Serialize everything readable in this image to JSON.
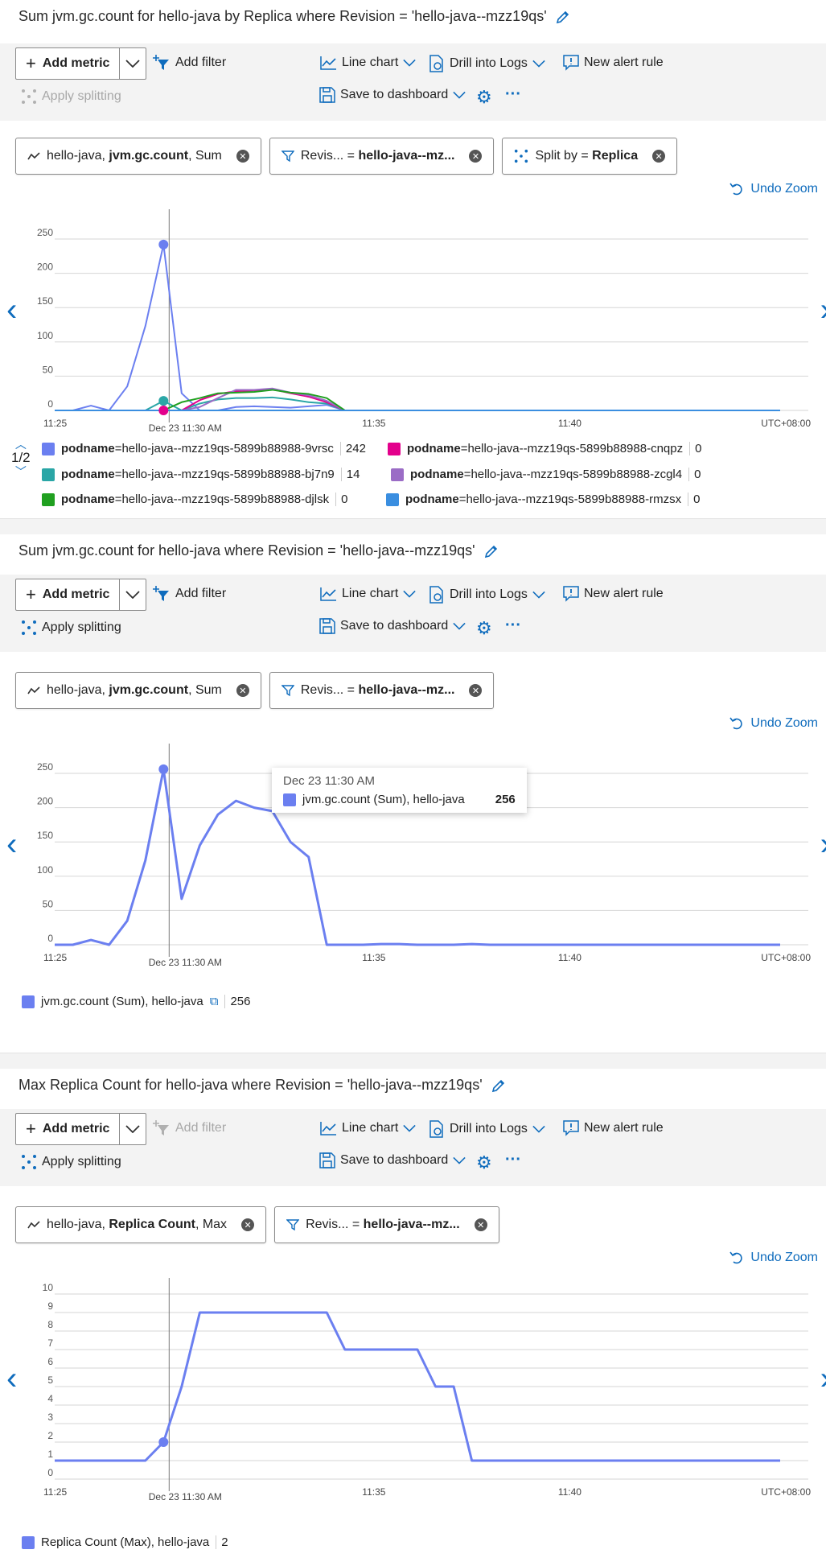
{
  "colors": {
    "blue": "#6b7ff0",
    "teal": "#2aa6a6",
    "magenta": "#e3008c",
    "purple": "#9b6cc6",
    "green": "#20a020",
    "skyblue": "#3a8ee0",
    "grid": "#d6d6d6",
    "accent": "#0f6cbd"
  },
  "panels": [
    {
      "title": "Sum jvm.gc.count for hello-java by Replica where Revision = 'hello-java--mzz19qs'",
      "toolbar": {
        "add_metric": "Add metric",
        "add_filter": "Add filter",
        "add_filter_disabled": false,
        "line_chart": "Line chart",
        "drill_logs": "Drill into Logs",
        "new_alert": "New alert rule",
        "apply_splitting": "Apply splitting",
        "apply_splitting_disabled": true,
        "save_dashboard": "Save to dashboard",
        "more": "···"
      },
      "pills": [
        {
          "prefix": "hello-java, ",
          "bold": "jvm.gc.count",
          "suffix": ", Sum",
          "icon": "metric-icon"
        },
        {
          "prefix": "Revis... = ",
          "bold": "hello-java--mz...",
          "suffix": "",
          "icon": "filter-icon"
        },
        {
          "prefix": "Split by = ",
          "bold": "Replica",
          "suffix": "",
          "icon": "split-icon"
        }
      ],
      "undo": "Undo Zoom",
      "pager": "1/2",
      "legend": [
        {
          "key": "podname",
          "value_text": "=hello-java--mzz19qs-5899b88988-9vrsc",
          "num": "242",
          "color": "#6b7ff0"
        },
        {
          "key": "podname",
          "value_text": "=hello-java--mzz19qs-5899b88988-cnqpz",
          "num": "0",
          "color": "#e3008c"
        },
        {
          "key": "podname",
          "value_text": "=hello-java--mzz19qs-5899b88988-bj7n9",
          "num": "14",
          "color": "#2aa6a6"
        },
        {
          "key": "podname",
          "value_text": "=hello-java--mzz19qs-5899b88988-zcgl4",
          "num": "0",
          "color": "#9b6cc6"
        },
        {
          "key": "podname",
          "value_text": "=hello-java--mzz19qs-5899b88988-djlsk",
          "num": "0",
          "color": "#20a020"
        },
        {
          "key": "podname",
          "value_text": "=hello-java--mzz19qs-5899b88988-rmzsx",
          "num": "0",
          "color": "#3a8ee0"
        }
      ]
    },
    {
      "title": "Sum jvm.gc.count for hello-java where Revision = 'hello-java--mzz19qs'",
      "toolbar": {
        "add_metric": "Add metric",
        "add_filter": "Add filter",
        "add_filter_disabled": false,
        "line_chart": "Line chart",
        "drill_logs": "Drill into Logs",
        "new_alert": "New alert rule",
        "apply_splitting": "Apply splitting",
        "apply_splitting_disabled": false,
        "save_dashboard": "Save to dashboard",
        "more": "···"
      },
      "pills": [
        {
          "prefix": "hello-java, ",
          "bold": "jvm.gc.count",
          "suffix": ", Sum",
          "icon": "metric-icon"
        },
        {
          "prefix": "Revis... = ",
          "bold": "hello-java--mz...",
          "suffix": "",
          "icon": "filter-icon"
        }
      ],
      "undo": "Undo Zoom",
      "tooltip": {
        "date": "Dec 23 11:30 AM",
        "label": "jvm.gc.count (Sum), hello-java",
        "value": "256"
      },
      "legend": [
        {
          "label": "jvm.gc.count (Sum), hello-java",
          "num": "256",
          "color": "#6b7ff0"
        }
      ]
    },
    {
      "title": "Max Replica Count for hello-java where Revision = 'hello-java--mzz19qs'",
      "toolbar": {
        "add_metric": "Add metric",
        "add_filter": "Add filter",
        "add_filter_disabled": true,
        "line_chart": "Line chart",
        "drill_logs": "Drill into Logs",
        "new_alert": "New alert rule",
        "apply_splitting": "Apply splitting",
        "apply_splitting_disabled": false,
        "save_dashboard": "Save to dashboard",
        "more": "···"
      },
      "pills": [
        {
          "prefix": "hello-java, ",
          "bold": "Replica Count",
          "suffix": ", Max",
          "icon": "metric-icon"
        },
        {
          "prefix": "Revis... = ",
          "bold": "hello-java--mz...",
          "suffix": "",
          "icon": "filter-icon"
        }
      ],
      "undo": "Undo Zoom",
      "legend": [
        {
          "label": "Replica Count (Max), hello-java",
          "num": "2",
          "color": "#6b7ff0"
        }
      ]
    }
  ],
  "chart_data": [
    {
      "type": "line",
      "x_ticks": [
        "11:25",
        "Dec 23 11:30 AM",
        "11:35",
        "11:40",
        "UTC+08:00"
      ],
      "y_ticks": [
        0,
        50,
        100,
        150,
        200,
        250
      ],
      "ylim": [
        0,
        270
      ],
      "x": [
        0,
        1,
        2,
        3,
        4,
        5,
        6,
        7,
        8,
        9,
        10,
        11,
        12,
        13,
        14,
        15,
        16,
        17,
        18,
        19,
        20,
        21,
        22,
        23,
        24,
        25,
        26,
        27,
        28,
        29,
        30,
        31,
        32,
        33,
        34,
        35,
        36,
        37,
        38,
        39,
        40
      ],
      "series": [
        {
          "name": "podname=hello-java--mzz19qs-5899b88988-9vrsc",
          "color": "#6b7ff0",
          "values": [
            0,
            0,
            7,
            0,
            35,
            123,
            242,
            25,
            0,
            0,
            5,
            6,
            5,
            4,
            6,
            8,
            0,
            0,
            0,
            0,
            0,
            0,
            0,
            0,
            0,
            0,
            0,
            0,
            0,
            0,
            0,
            0,
            0,
            0,
            0,
            0,
            0,
            0,
            0,
            0,
            0
          ]
        },
        {
          "name": "podname=hello-java--mzz19qs-5899b88988-bj7n9",
          "color": "#2aa6a6",
          "values": [
            0,
            0,
            0,
            0,
            0,
            0,
            14,
            0,
            10,
            16,
            18,
            18,
            19,
            16,
            12,
            10,
            0,
            0,
            0,
            0,
            0,
            0,
            0,
            0,
            0,
            0,
            0,
            0,
            0,
            0,
            0,
            0,
            0,
            0,
            0,
            0,
            0,
            0,
            0,
            0,
            0
          ]
        },
        {
          "name": "podname=hello-java--mzz19qs-5899b88988-cnqpz",
          "color": "#e3008c",
          "values": [
            0,
            0,
            0,
            0,
            0,
            0,
            0,
            0,
            15,
            24,
            28,
            29,
            31,
            25,
            20,
            12,
            0,
            0,
            0,
            0,
            0,
            0,
            0,
            0,
            0,
            0,
            0,
            0,
            0,
            0,
            0,
            0,
            0,
            0,
            0,
            0,
            0,
            0,
            0,
            0,
            0
          ]
        },
        {
          "name": "podname=hello-java--mzz19qs-5899b88988-zcgl4",
          "color": "#9b6cc6",
          "values": [
            0,
            0,
            0,
            0,
            0,
            0,
            0,
            0,
            5,
            18,
            30,
            30,
            32,
            26,
            22,
            14,
            0,
            0,
            0,
            0,
            0,
            0,
            0,
            0,
            0,
            0,
            0,
            0,
            0,
            0,
            0,
            0,
            0,
            0,
            0,
            0,
            0,
            0,
            0,
            0,
            0
          ]
        },
        {
          "name": "podname=hello-java--mzz19qs-5899b88988-djlsk",
          "color": "#20a020",
          "values": [
            0,
            0,
            0,
            0,
            0,
            0,
            0,
            12,
            18,
            25,
            26,
            27,
            30,
            26,
            24,
            18,
            0,
            0,
            0,
            0,
            0,
            0,
            0,
            0,
            0,
            0,
            0,
            0,
            0,
            0,
            0,
            0,
            0,
            0,
            0,
            0,
            0,
            0,
            0,
            0,
            0
          ]
        },
        {
          "name": "podname=hello-java--mzz19qs-5899b88988-rmzsx",
          "color": "#3a8ee0",
          "values": [
            0,
            0,
            0,
            0,
            0,
            0,
            0,
            0,
            0,
            0,
            0,
            0,
            0,
            0,
            0,
            0,
            0,
            0,
            0,
            0,
            0,
            0,
            0,
            0,
            0,
            0,
            0,
            0,
            0,
            0,
            0,
            0,
            0,
            0,
            0,
            0,
            0,
            0,
            0,
            0,
            0
          ]
        }
      ],
      "highlight_index": 6
    },
    {
      "type": "line",
      "x_ticks": [
        "11:25",
        "Dec 23 11:30 AM",
        "11:35",
        "11:40",
        "UTC+08:00"
      ],
      "y_ticks": [
        0,
        50,
        100,
        150,
        200,
        250
      ],
      "ylim": [
        0,
        270
      ],
      "x": [
        0,
        1,
        2,
        3,
        4,
        5,
        6,
        7,
        8,
        9,
        10,
        11,
        12,
        13,
        14,
        15,
        16,
        17,
        18,
        19,
        20,
        21,
        22,
        23,
        24,
        25,
        26,
        27,
        28,
        29,
        30,
        31,
        32,
        33,
        34,
        35,
        36,
        37,
        38,
        39,
        40
      ],
      "series": [
        {
          "name": "jvm.gc.count (Sum), hello-java",
          "color": "#6b7ff0",
          "values": [
            0,
            0,
            7,
            0,
            35,
            123,
            256,
            67,
            145,
            190,
            210,
            200,
            195,
            150,
            128,
            0,
            0,
            0,
            1,
            1,
            0,
            0,
            0,
            1,
            0,
            0,
            0,
            0,
            0,
            0,
            0,
            0,
            0,
            0,
            0,
            0,
            0,
            0,
            0,
            0,
            0
          ]
        }
      ],
      "highlight_index": 6
    },
    {
      "type": "line",
      "x_ticks": [
        "11:25",
        "Dec 23 11:30 AM",
        "11:35",
        "11:40",
        "UTC+08:00"
      ],
      "y_ticks": [
        0,
        1,
        2,
        3,
        4,
        5,
        6,
        7,
        8,
        9,
        10
      ],
      "ylim": [
        0,
        10
      ],
      "x": [
        0,
        1,
        2,
        3,
        4,
        5,
        6,
        7,
        8,
        9,
        10,
        11,
        12,
        13,
        14,
        15,
        16,
        17,
        18,
        19,
        20,
        21,
        22,
        23,
        24,
        25,
        26,
        27,
        28,
        29,
        30,
        31,
        32,
        33,
        34,
        35,
        36,
        37,
        38,
        39,
        40
      ],
      "series": [
        {
          "name": "Replica Count (Max), hello-java",
          "color": "#6b7ff0",
          "values": [
            1,
            1,
            1,
            1,
            1,
            1,
            2,
            5,
            9,
            9,
            9,
            9,
            9,
            9,
            9,
            9,
            7,
            7,
            7,
            7,
            7,
            5,
            5,
            1,
            1,
            1,
            1,
            1,
            1,
            1,
            1,
            1,
            1,
            1,
            1,
            1,
            1,
            1,
            1,
            1,
            1
          ]
        }
      ],
      "highlight_index": 6
    }
  ]
}
